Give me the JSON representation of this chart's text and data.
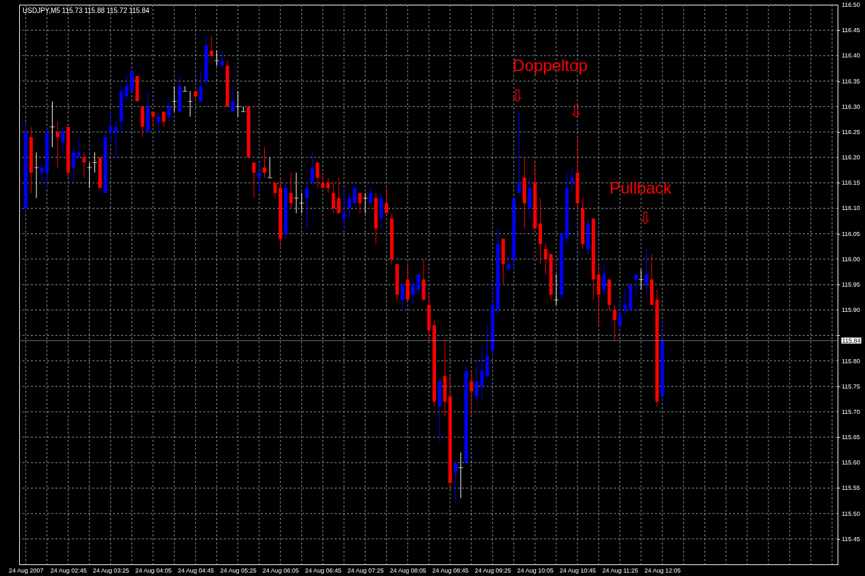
{
  "chart_data": {
    "type": "candlestick",
    "title": "USDJPY,M5  115.73 115.88 115.72 115.84",
    "x": [
      "2007-08-24T02:05",
      "2007-08-24T02:10",
      "2007-08-24T02:15",
      "2007-08-24T02:20",
      "2007-08-24T02:25",
      "2007-08-24T02:30",
      "2007-08-24T02:35",
      "2007-08-24T02:40",
      "2007-08-24T02:45",
      "2007-08-24T02:50",
      "2007-08-24T02:55",
      "2007-08-24T03:00",
      "2007-08-24T03:05",
      "2007-08-24T03:10",
      "2007-08-24T03:15",
      "2007-08-24T03:20",
      "2007-08-24T03:25",
      "2007-08-24T03:30",
      "2007-08-24T03:35",
      "2007-08-24T03:40",
      "2007-08-24T03:45",
      "2007-08-24T03:50",
      "2007-08-24T03:55",
      "2007-08-24T04:00",
      "2007-08-24T04:05",
      "2007-08-24T04:10",
      "2007-08-24T04:15",
      "2007-08-24T04:20",
      "2007-08-24T04:25",
      "2007-08-24T04:30",
      "2007-08-24T04:35",
      "2007-08-24T04:40",
      "2007-08-24T04:45",
      "2007-08-24T04:50",
      "2007-08-24T04:55",
      "2007-08-24T05:00",
      "2007-08-24T05:05",
      "2007-08-24T05:10",
      "2007-08-24T05:15",
      "2007-08-24T05:20",
      "2007-08-24T05:25",
      "2007-08-24T05:30",
      "2007-08-24T05:35",
      "2007-08-24T05:40",
      "2007-08-24T05:45",
      "2007-08-24T05:50",
      "2007-08-24T05:55",
      "2007-08-24T06:00",
      "2007-08-24T06:05",
      "2007-08-24T06:10",
      "2007-08-24T06:15",
      "2007-08-24T06:20",
      "2007-08-24T06:25",
      "2007-08-24T06:30",
      "2007-08-24T06:35",
      "2007-08-24T06:40",
      "2007-08-24T06:45",
      "2007-08-24T06:50",
      "2007-08-24T06:55",
      "2007-08-24T07:00",
      "2007-08-24T07:05",
      "2007-08-24T07:10",
      "2007-08-24T07:15",
      "2007-08-24T07:20",
      "2007-08-24T07:25",
      "2007-08-24T07:30",
      "2007-08-24T07:35",
      "2007-08-24T07:40",
      "2007-08-24T07:45",
      "2007-08-24T07:50",
      "2007-08-24T07:55",
      "2007-08-24T08:00",
      "2007-08-24T08:05",
      "2007-08-24T08:10",
      "2007-08-24T08:15",
      "2007-08-24T08:20",
      "2007-08-24T08:25",
      "2007-08-24T08:30",
      "2007-08-24T08:35",
      "2007-08-24T08:40",
      "2007-08-24T08:45",
      "2007-08-24T08:50",
      "2007-08-24T08:55",
      "2007-08-24T09:00",
      "2007-08-24T09:05",
      "2007-08-24T09:10",
      "2007-08-24T09:15",
      "2007-08-24T09:20",
      "2007-08-24T09:25",
      "2007-08-24T09:30",
      "2007-08-24T09:35",
      "2007-08-24T09:40",
      "2007-08-24T09:45",
      "2007-08-24T09:50",
      "2007-08-24T09:55",
      "2007-08-24T10:00",
      "2007-08-24T10:05",
      "2007-08-24T10:10",
      "2007-08-24T10:15",
      "2007-08-24T10:20",
      "2007-08-24T10:25",
      "2007-08-24T10:30",
      "2007-08-24T10:35",
      "2007-08-24T10:40",
      "2007-08-24T10:45",
      "2007-08-24T10:50",
      "2007-08-24T10:55",
      "2007-08-24T11:00",
      "2007-08-24T11:05",
      "2007-08-24T11:10",
      "2007-08-24T11:15",
      "2007-08-24T11:20",
      "2007-08-24T11:25",
      "2007-08-24T11:30",
      "2007-08-24T11:35",
      "2007-08-24T11:40",
      "2007-08-24T11:45",
      "2007-08-24T11:50",
      "2007-08-24T11:55",
      "2007-08-24T12:00",
      "2007-08-24T12:05"
    ],
    "ohlc": [
      [
        116.1,
        116.27,
        116.09,
        116.25
      ],
      [
        116.24,
        116.26,
        116.13,
        116.17
      ],
      [
        116.18,
        116.21,
        116.12,
        116.18
      ],
      [
        116.17,
        116.19,
        116.15,
        116.18
      ],
      [
        116.17,
        116.26,
        116.14,
        116.25
      ],
      [
        116.26,
        116.31,
        116.22,
        116.26
      ],
      [
        116.25,
        116.27,
        116.18,
        116.24
      ],
      [
        116.23,
        116.26,
        116.21,
        116.25
      ],
      [
        116.26,
        116.26,
        116.16,
        116.17
      ],
      [
        116.18,
        116.22,
        116.15,
        116.21
      ],
      [
        116.2,
        116.24,
        116.2,
        116.21
      ],
      [
        116.2,
        116.21,
        116.16,
        116.19
      ],
      [
        116.18,
        116.19,
        116.14,
        116.18
      ],
      [
        116.19,
        116.21,
        116.17,
        116.19
      ],
      [
        116.2,
        116.2,
        116.14,
        116.14
      ],
      [
        116.13,
        116.25,
        116.13,
        116.24
      ],
      [
        116.25,
        116.29,
        116.23,
        116.26
      ],
      [
        116.25,
        116.27,
        116.2,
        116.26
      ],
      [
        116.27,
        116.34,
        116.25,
        116.33
      ],
      [
        116.32,
        116.36,
        116.31,
        116.34
      ],
      [
        116.33,
        116.37,
        116.33,
        116.37
      ],
      [
        116.36,
        116.36,
        116.31,
        116.31
      ],
      [
        116.3,
        116.3,
        116.24,
        116.26
      ],
      [
        116.25,
        116.33,
        116.25,
        116.3
      ],
      [
        116.29,
        116.29,
        116.26,
        116.28
      ],
      [
        116.27,
        116.29,
        116.25,
        116.28
      ],
      [
        116.29,
        116.29,
        116.26,
        116.27
      ],
      [
        116.28,
        116.31,
        116.27,
        116.3
      ],
      [
        116.31,
        116.34,
        116.29,
        116.31
      ],
      [
        116.29,
        116.36,
        116.29,
        116.34
      ],
      [
        116.33,
        116.34,
        116.33,
        116.33
      ],
      [
        116.31,
        116.33,
        116.28,
        116.31
      ],
      [
        116.33,
        116.33,
        116.31,
        116.32
      ],
      [
        116.31,
        116.37,
        116.31,
        116.34
      ],
      [
        116.35,
        116.44,
        116.34,
        116.42
      ],
      [
        116.41,
        116.44,
        116.4,
        116.4
      ],
      [
        116.39,
        116.41,
        116.38,
        116.39
      ],
      [
        116.38,
        116.41,
        116.38,
        116.39
      ],
      [
        116.38,
        116.39,
        116.3,
        116.3
      ],
      [
        116.29,
        116.34,
        116.29,
        116.31
      ],
      [
        116.3,
        116.33,
        116.28,
        116.3
      ],
      [
        116.29,
        116.3,
        116.29,
        116.29
      ],
      [
        116.3,
        116.3,
        116.2,
        116.2
      ],
      [
        116.19,
        116.19,
        116.12,
        116.17
      ],
      [
        116.16,
        116.19,
        116.13,
        116.17
      ],
      [
        116.18,
        116.22,
        116.16,
        116.17
      ],
      [
        116.16,
        116.2,
        116.16,
        116.16
      ],
      [
        116.15,
        116.15,
        116.12,
        116.13
      ],
      [
        116.14,
        116.16,
        116.02,
        116.04
      ],
      [
        116.05,
        116.15,
        116.04,
        116.14
      ],
      [
        116.13,
        116.17,
        116.1,
        116.11
      ],
      [
        116.12,
        116.17,
        116.09,
        116.12
      ],
      [
        116.11,
        116.13,
        116.09,
        116.11
      ],
      [
        116.12,
        116.15,
        116.06,
        116.14
      ],
      [
        116.15,
        116.21,
        116.15,
        116.18
      ],
      [
        116.19,
        116.19,
        116.14,
        116.16
      ],
      [
        116.15,
        116.17,
        116.14,
        116.14
      ],
      [
        116.15,
        116.16,
        116.13,
        116.14
      ],
      [
        116.13,
        116.15,
        116.09,
        116.1
      ],
      [
        116.12,
        116.16,
        116.09,
        116.09
      ],
      [
        116.08,
        116.14,
        116.06,
        116.09
      ],
      [
        116.1,
        116.13,
        116.08,
        116.12
      ],
      [
        116.11,
        116.15,
        116.11,
        116.14
      ],
      [
        116.13,
        116.13,
        116.09,
        116.11
      ],
      [
        116.12,
        116.13,
        116.09,
        116.12
      ],
      [
        116.11,
        116.14,
        116.11,
        116.13
      ],
      [
        116.12,
        116.13,
        116.03,
        116.06
      ],
      [
        116.08,
        116.13,
        116.06,
        116.12
      ],
      [
        116.11,
        116.14,
        116.09,
        116.09
      ],
      [
        116.08,
        116.09,
        115.99,
        116.0
      ],
      [
        115.99,
        115.99,
        115.92,
        115.93
      ],
      [
        115.92,
        115.95,
        115.9,
        115.95
      ],
      [
        115.96,
        115.99,
        115.92,
        115.92
      ],
      [
        115.93,
        115.96,
        115.91,
        115.95
      ],
      [
        115.94,
        115.97,
        115.93,
        115.97
      ],
      [
        115.96,
        116.0,
        115.92,
        115.92
      ],
      [
        115.91,
        115.93,
        115.84,
        115.86
      ],
      [
        115.87,
        115.88,
        115.71,
        115.72
      ],
      [
        115.71,
        115.76,
        115.64,
        115.76
      ],
      [
        115.77,
        115.84,
        115.69,
        115.72
      ],
      [
        115.73,
        115.77,
        115.55,
        115.56
      ],
      [
        115.58,
        115.6,
        115.52,
        115.6
      ],
      [
        115.59,
        115.62,
        115.53,
        115.59
      ],
      [
        115.6,
        115.79,
        115.6,
        115.78
      ],
      [
        115.76,
        115.78,
        115.69,
        115.74
      ],
      [
        115.73,
        115.8,
        115.72,
        115.76
      ],
      [
        115.75,
        115.83,
        115.72,
        115.78
      ],
      [
        115.77,
        115.87,
        115.77,
        115.81
      ],
      [
        115.82,
        115.95,
        115.81,
        115.91
      ],
      [
        115.9,
        116.06,
        115.89,
        116.03
      ],
      [
        116.04,
        116.04,
        115.95,
        115.99
      ],
      [
        115.98,
        116.01,
        115.98,
        115.99
      ],
      [
        116.0,
        116.12,
        115.98,
        116.12
      ],
      [
        116.13,
        116.29,
        116.13,
        116.15
      ],
      [
        116.16,
        116.2,
        116.06,
        116.11
      ],
      [
        116.1,
        116.16,
        116.08,
        116.14
      ],
      [
        116.15,
        116.19,
        116.06,
        116.06
      ],
      [
        116.07,
        116.12,
        115.99,
        116.03
      ],
      [
        116.02,
        116.03,
        115.97,
        116.0
      ],
      [
        116.01,
        116.01,
        115.92,
        115.93
      ],
      [
        115.92,
        115.97,
        115.91,
        115.92
      ],
      [
        115.93,
        116.05,
        115.92,
        116.05
      ],
      [
        116.04,
        116.17,
        116.03,
        116.14
      ],
      [
        116.15,
        116.18,
        116.13,
        116.16
      ],
      [
        116.17,
        116.24,
        116.1,
        116.11
      ],
      [
        116.1,
        116.12,
        116.02,
        116.03
      ],
      [
        116.02,
        116.08,
        116.01,
        116.07
      ],
      [
        116.08,
        116.08,
        115.92,
        115.96
      ],
      [
        115.97,
        115.99,
        115.87,
        115.93
      ],
      [
        115.94,
        115.99,
        115.93,
        115.97
      ],
      [
        115.96,
        115.96,
        115.9,
        115.91
      ],
      [
        115.9,
        115.91,
        115.84,
        115.88
      ],
      [
        115.87,
        115.92,
        115.86,
        115.89
      ],
      [
        115.9,
        115.94,
        115.89,
        115.91
      ],
      [
        115.9,
        115.95,
        115.9,
        115.95
      ],
      [
        115.96,
        115.97,
        115.93,
        115.97
      ],
      [
        115.96,
        115.98,
        115.94,
        115.96
      ],
      [
        115.95,
        116.02,
        115.93,
        115.97
      ],
      [
        115.96,
        116.01,
        115.91,
        115.91
      ],
      [
        115.92,
        115.94,
        115.71,
        115.72
      ],
      [
        115.73,
        115.88,
        115.72,
        115.84
      ]
    ],
    "xlim": [
      "2007-08-24T02:02",
      "2007-08-24T14:47"
    ],
    "xticks": [
      {
        "value": "2007-08-24T02:05",
        "label": "24 Aug 2007"
      },
      {
        "value": "2007-08-24T02:25",
        "label": null
      },
      {
        "value": "2007-08-24T02:45",
        "label": "24 Aug 02:45"
      },
      {
        "value": "2007-08-24T03:05",
        "label": null
      },
      {
        "value": "2007-08-24T03:25",
        "label": "24 Aug 03:25"
      },
      {
        "value": "2007-08-24T03:45",
        "label": null
      },
      {
        "value": "2007-08-24T04:05",
        "label": "24 Aug 04:05"
      },
      {
        "value": "2007-08-24T04:25",
        "label": null
      },
      {
        "value": "2007-08-24T04:45",
        "label": "24 Aug 04:45"
      },
      {
        "value": "2007-08-24T05:05",
        "label": null
      },
      {
        "value": "2007-08-24T05:25",
        "label": "24 Aug 05:25"
      },
      {
        "value": "2007-08-24T05:45",
        "label": null
      },
      {
        "value": "2007-08-24T06:05",
        "label": "24 Aug 06:05"
      },
      {
        "value": "2007-08-24T06:25",
        "label": null
      },
      {
        "value": "2007-08-24T06:45",
        "label": "24 Aug 06:45"
      },
      {
        "value": "2007-08-24T07:05",
        "label": null
      },
      {
        "value": "2007-08-24T07:25",
        "label": "24 Aug 07:25"
      },
      {
        "value": "2007-08-24T07:45",
        "label": null
      },
      {
        "value": "2007-08-24T08:05",
        "label": "24 Aug 08:05"
      },
      {
        "value": "2007-08-24T08:25",
        "label": null
      },
      {
        "value": "2007-08-24T08:45",
        "label": "24 Aug 08:45"
      },
      {
        "value": "2007-08-24T09:05",
        "label": null
      },
      {
        "value": "2007-08-24T09:25",
        "label": "24 Aug 09:25"
      },
      {
        "value": "2007-08-24T09:45",
        "label": null
      },
      {
        "value": "2007-08-24T10:05",
        "label": "24 Aug 10:05"
      },
      {
        "value": "2007-08-24T10:25",
        "label": null
      },
      {
        "value": "2007-08-24T10:45",
        "label": "24 Aug 10:45"
      },
      {
        "value": "2007-08-24T11:05",
        "label": null
      },
      {
        "value": "2007-08-24T11:25",
        "label": "24 Aug 11:25"
      },
      {
        "value": "2007-08-24T11:45",
        "label": null
      },
      {
        "value": "2007-08-24T12:05",
        "label": "24 Aug 12:05"
      },
      {
        "value": "2007-08-24T12:25",
        "label": null
      },
      {
        "value": "2007-08-24T12:45",
        "label": null
      },
      {
        "value": "2007-08-24T13:05",
        "label": null
      },
      {
        "value": "2007-08-24T13:25",
        "label": null
      },
      {
        "value": "2007-08-24T13:45",
        "label": null
      },
      {
        "value": "2007-08-24T14:05",
        "label": null
      },
      {
        "value": "2007-08-24T14:25",
        "label": null
      },
      {
        "value": "2007-08-24T14:45",
        "label": null
      }
    ],
    "ylim": [
      115.4,
      116.5
    ],
    "yticks": [
      115.45,
      {
        "value": 115.5,
        "label": "115.50"
      },
      115.55,
      {
        "value": 115.6,
        "label": "115.60"
      },
      115.65,
      {
        "value": 115.7,
        "label": "115.70"
      },
      115.75,
      {
        "value": 115.8,
        "label": "115.80"
      },
      {
        "value": 115.85,
        "label": null
      },
      {
        "value": 115.9,
        "label": "115.90"
      },
      115.95,
      {
        "value": 116.0,
        "label": "116.00"
      },
      116.05,
      {
        "value": 116.1,
        "label": "116.10"
      },
      116.15,
      {
        "value": 116.2,
        "label": "116.20"
      },
      116.25,
      {
        "value": 116.3,
        "label": "116.30"
      },
      116.35,
      {
        "value": 116.4,
        "label": "116.40"
      },
      116.45,
      {
        "value": 116.5,
        "label": "116.50"
      }
    ],
    "grid": true,
    "ref_lines": [
      {
        "axis": "y",
        "value": 115.84,
        "label": "115.84",
        "color": "#6a7a96"
      }
    ],
    "annotations": [
      "Doppeltop",
      "⇩",
      "⇩",
      "Pullback",
      "⇩"
    ]
  }
}
